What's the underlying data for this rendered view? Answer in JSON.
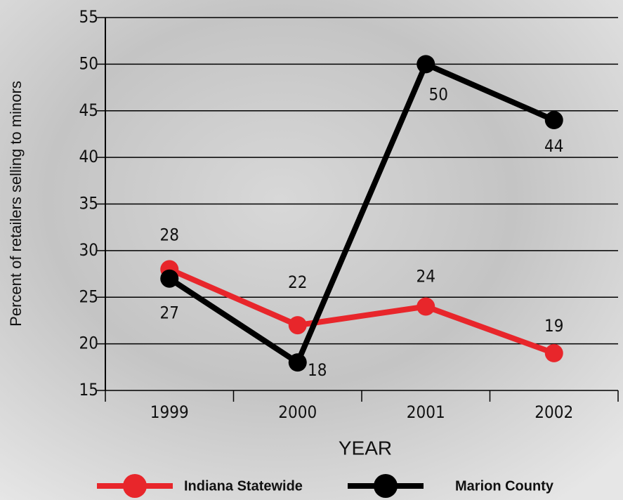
{
  "chart_data": {
    "type": "line",
    "x_label": "YEAR",
    "y_label": "Percent of retailers selling to minors",
    "categories": [
      "1999",
      "2000",
      "2001",
      "2002"
    ],
    "series": [
      {
        "name": "Indiana Statewide",
        "color": "#e8262b",
        "values": [
          28,
          22,
          24,
          19
        ]
      },
      {
        "name": "Marion County",
        "color": "#000000",
        "values": [
          27,
          18,
          50,
          44
        ]
      }
    ],
    "ylim": [
      15,
      55
    ],
    "yticks": [
      15,
      20,
      25,
      30,
      35,
      40,
      45,
      50,
      55
    ],
    "grid": true
  }
}
